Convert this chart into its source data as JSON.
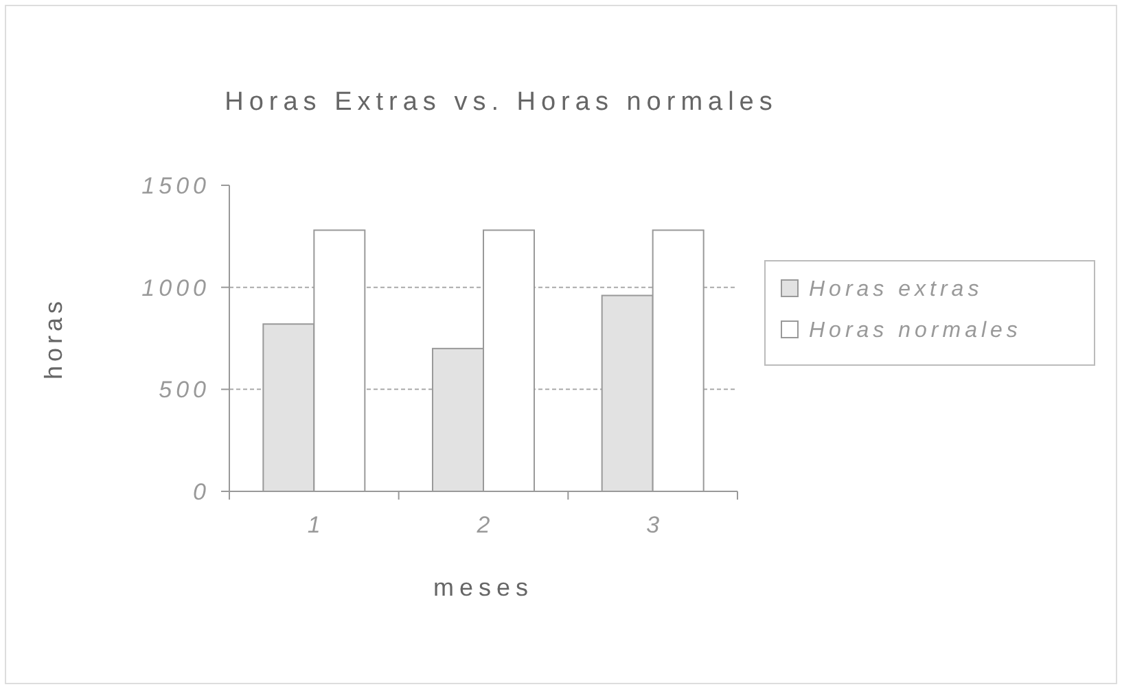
{
  "chart_data": {
    "type": "bar",
    "title": "Horas Extras vs. Horas normales",
    "xlabel": "meses",
    "ylabel": "horas",
    "categories": [
      "1",
      "2",
      "3"
    ],
    "series": [
      {
        "name": "Horas extras",
        "color": "#e2e2e2",
        "values": [
          820,
          700,
          960
        ]
      },
      {
        "name": "Horas normales",
        "color": "#ffffff",
        "values": [
          1280,
          1280,
          1280
        ]
      }
    ],
    "ylim": [
      0,
      1500
    ],
    "yticks": [
      0,
      500,
      1000,
      1500
    ],
    "grid": "y",
    "legend": "right"
  }
}
